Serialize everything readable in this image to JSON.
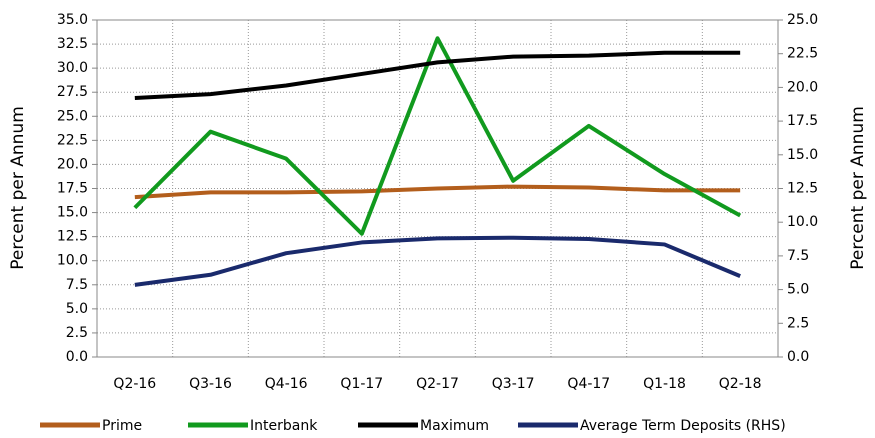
{
  "chart_data": {
    "type": "line",
    "categories": [
      "Q2-16",
      "Q3-16",
      "Q4-16",
      "Q1-17",
      "Q2-17",
      "Q3-17",
      "Q4-17",
      "Q1-18",
      "Q2-18"
    ],
    "series": [
      {
        "name": "Prime",
        "color": "#b35e1c",
        "values": [
          16.6,
          17.1,
          17.1,
          17.2,
          17.5,
          17.7,
          17.6,
          17.3,
          17.3
        ]
      },
      {
        "name": "Interbank",
        "color": "#119a1e",
        "values": [
          15.5,
          23.4,
          20.6,
          12.8,
          33.1,
          18.3,
          24.0,
          19.0,
          14.7
        ]
      },
      {
        "name": "Maximum",
        "color": "#000000",
        "values": [
          26.9,
          27.3,
          28.2,
          29.4,
          30.6,
          31.2,
          31.3,
          31.6,
          31.6
        ]
      },
      {
        "name": "Average Term Deposits (RHS)",
        "color": "#1a2a6c",
        "axis": "y2",
        "values": [
          5.35,
          6.1,
          7.7,
          8.5,
          8.8,
          8.85,
          8.75,
          8.35,
          6.0
        ]
      }
    ],
    "ylabel": "Percent per Annum",
    "y2label": "Percent per Annum",
    "ylim": [
      0,
      35
    ],
    "yticks": [
      {
        "value": 0,
        "label": "0.0"
      },
      {
        "value": 2.5,
        "label": "2.5"
      },
      {
        "value": 5,
        "label": "5.0"
      },
      {
        "value": 7.5,
        "label": "7.5"
      },
      {
        "value": 10,
        "label": "10.0"
      },
      {
        "value": 12.5,
        "label": "12.5"
      },
      {
        "value": 15,
        "label": "15.0"
      },
      {
        "value": 17.5,
        "label": "17.5"
      },
      {
        "value": 20,
        "label": "20.0"
      },
      {
        "value": 22.5,
        "label": "22.5"
      },
      {
        "value": 25,
        "label": "25.0"
      },
      {
        "value": 27.5,
        "label": "27.5"
      },
      {
        "value": 30,
        "label": "30.0"
      },
      {
        "value": 32.5,
        "label": "32.5"
      },
      {
        "value": 35,
        "label": "35.0"
      }
    ],
    "y2lim": [
      0,
      25
    ],
    "y2ticks": [
      {
        "value": 0,
        "label": "0.0"
      },
      {
        "value": 2.5,
        "label": "2.5"
      },
      {
        "value": 5,
        "label": "5.0"
      },
      {
        "value": 7.5,
        "label": "7.5"
      },
      {
        "value": 10,
        "label": "10.0"
      },
      {
        "value": 12.5,
        "label": "12.5"
      },
      {
        "value": 15,
        "label": "15.0"
      },
      {
        "value": 17.5,
        "label": "17.5"
      },
      {
        "value": 20,
        "label": "20.0"
      },
      {
        "value": 22.5,
        "label": "22.5"
      },
      {
        "value": 25,
        "label": "25.0"
      }
    ],
    "grid": true,
    "legend": "bottom"
  }
}
